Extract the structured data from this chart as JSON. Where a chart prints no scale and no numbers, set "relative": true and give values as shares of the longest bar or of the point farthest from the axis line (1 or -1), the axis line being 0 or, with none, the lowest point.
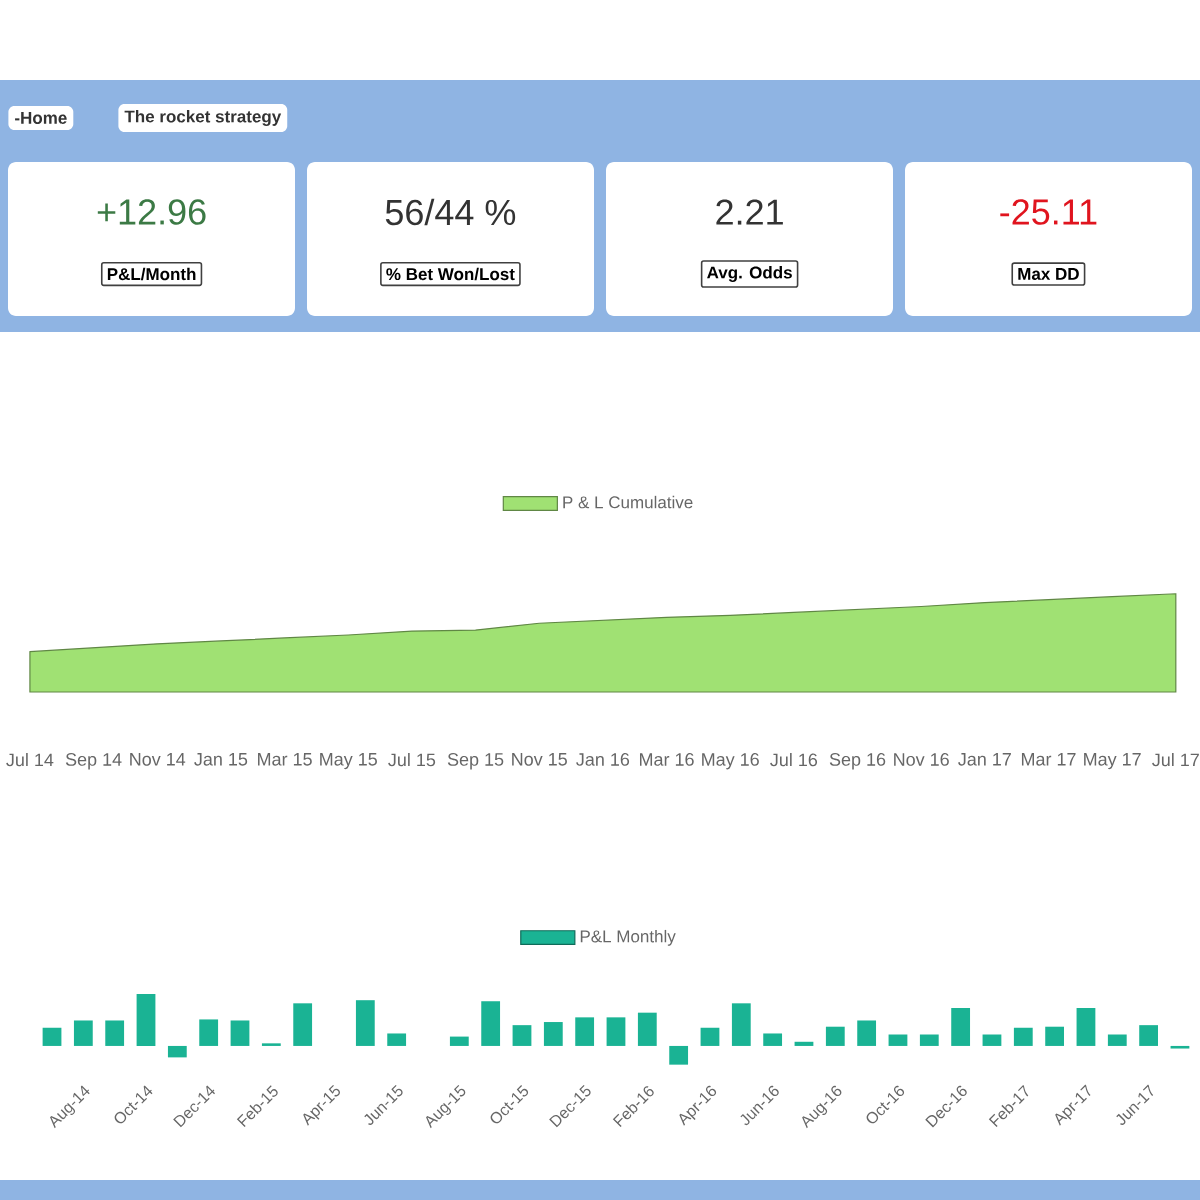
{
  "chart_data": [
    {
      "type": "other",
      "annotations": [
        "-Home",
        "The rocket strategy"
      ],
      "categories": [
        "P&L/Month",
        "% Bet Won/Lost",
        "Avg. Odds",
        "Max DD"
      ],
      "value_labels": [
        "+12.96",
        "56/44 %",
        "2.21",
        "-25.11"
      ]
    },
    {
      "type": "area",
      "relative": true,
      "legend": "top",
      "categories": [
        "Jul 14",
        "Sep 14",
        "Nov 14",
        "Jan 15",
        "Mar 15",
        "May 15",
        "Jul 15",
        "Sep 15",
        "Nov 15",
        "Jan 16",
        "Mar 16",
        "May 16",
        "Jul 16",
        "Sep 16",
        "Nov 16",
        "Jan 17",
        "Mar 17",
        "May 17",
        "Jul 17"
      ],
      "series": [
        {
          "name": "P & L Cumulative",
          "color": "#a0e173",
          "values": [
            0.41,
            0.45,
            0.49,
            0.52,
            0.55,
            0.58,
            0.62,
            0.63,
            0.7,
            0.73,
            0.76,
            0.78,
            0.81,
            0.84,
            0.87,
            0.91,
            0.94,
            0.97,
            1
          ]
        }
      ]
    },
    {
      "type": "bar",
      "relative": true,
      "legend": "top",
      "categories": [
        null,
        "Aug-14",
        null,
        "Oct-14",
        null,
        "Dec-14",
        null,
        "Feb-15",
        null,
        "Apr-15",
        null,
        "Jun-15",
        null,
        "Aug-15",
        null,
        "Oct-15",
        null,
        "Dec-15",
        null,
        "Feb-16",
        null,
        "Apr-16",
        null,
        "Jun-16",
        null,
        "Aug-16",
        null,
        "Oct-16",
        null,
        "Dec-16",
        null,
        "Feb-17",
        null,
        "Apr-17",
        null,
        "Jun-17",
        null
      ],
      "series": [
        {
          "name": "P&L Monthly",
          "color": "#1ab394",
          "values": [
            0.35,
            0.49,
            0.49,
            1,
            -0.22,
            0.51,
            0.49,
            0.05,
            0.82,
            null,
            0.88,
            0.24,
            null,
            0.18,
            0.86,
            0.4,
            0.46,
            0.55,
            0.55,
            0.64,
            -0.36,
            0.35,
            0.82,
            0.24,
            0.08,
            0.37,
            0.49,
            0.22,
            0.22,
            0.73,
            0.22,
            0.35,
            0.37,
            0.73,
            0.22,
            0.4,
            -0.05
          ]
        }
      ]
    }
  ]
}
